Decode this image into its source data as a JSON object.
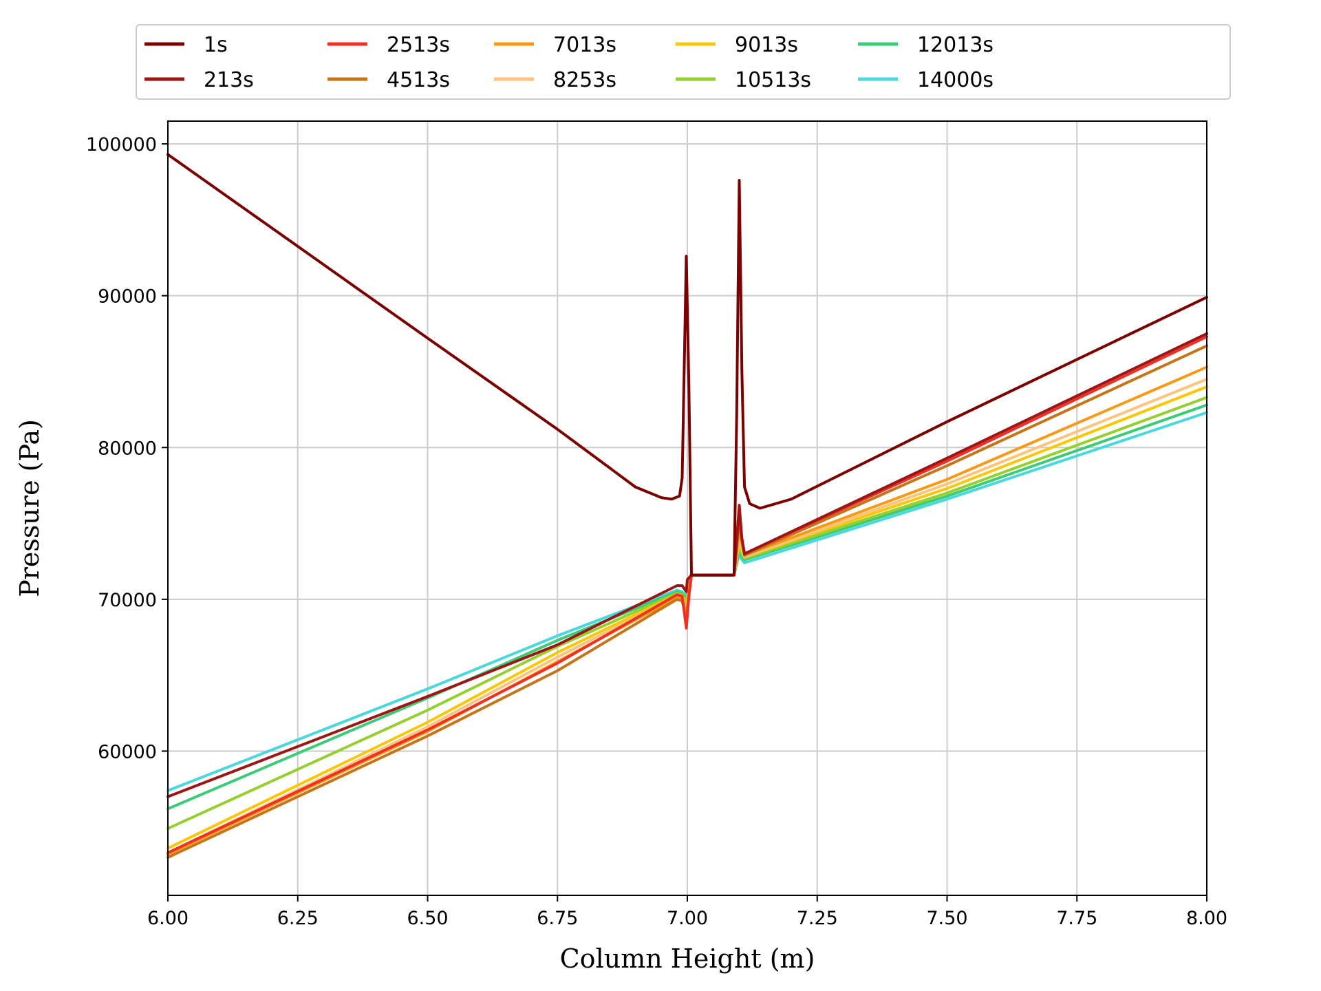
{
  "chart_data": {
    "type": "line",
    "title": "",
    "xlabel": "Column Height (m)",
    "ylabel": "Pressure (Pa)",
    "xlim": [
      6.0,
      8.0
    ],
    "ylim": [
      50500,
      101500
    ],
    "xticks": [
      6.0,
      6.25,
      6.5,
      6.75,
      7.0,
      7.25,
      7.5,
      7.75,
      8.0
    ],
    "xtick_labels": [
      "6.00",
      "6.25",
      "6.50",
      "6.75",
      "7.00",
      "7.25",
      "7.50",
      "7.75",
      "8.00"
    ],
    "yticks": [
      60000,
      70000,
      80000,
      90000,
      100000
    ],
    "ytick_labels": [
      "60000",
      "70000",
      "80000",
      "90000",
      "100000"
    ],
    "grid": true,
    "legend_position": "top-center, above plot, 6 columns",
    "series": [
      {
        "name": "1s",
        "color": "#7b0000",
        "points": [
          [
            6.0,
            99300
          ],
          [
            6.5,
            87200
          ],
          [
            6.75,
            81200
          ],
          [
            6.9,
            77400
          ],
          [
            6.95,
            76700
          ],
          [
            6.97,
            76600
          ],
          [
            6.985,
            76800
          ],
          [
            6.99,
            78000
          ],
          [
            6.998,
            92600
          ],
          [
            7.003,
            84000
          ],
          [
            7.008,
            71600
          ],
          [
            7.09,
            71600
          ],
          [
            7.095,
            82000
          ],
          [
            7.1,
            97600
          ],
          [
            7.105,
            85000
          ],
          [
            7.11,
            77400
          ],
          [
            7.12,
            76300
          ],
          [
            7.14,
            76000
          ],
          [
            7.2,
            76600
          ],
          [
            7.5,
            81700
          ],
          [
            8.0,
            89900
          ]
        ]
      },
      {
        "name": "213s",
        "color": "#9e1515",
        "points": [
          [
            6.0,
            57000
          ],
          [
            6.5,
            63600
          ],
          [
            6.75,
            67000
          ],
          [
            6.98,
            70900
          ],
          [
            6.99,
            70900
          ],
          [
            6.998,
            70500
          ],
          [
            7.0,
            71300
          ],
          [
            7.008,
            71600
          ],
          [
            7.09,
            71600
          ],
          [
            7.1,
            76200
          ],
          [
            7.105,
            74000
          ],
          [
            7.11,
            73000
          ],
          [
            7.5,
            79300
          ],
          [
            8.0,
            87500
          ]
        ]
      },
      {
        "name": "2513s",
        "color": "#f03024",
        "points": [
          [
            6.0,
            53300
          ],
          [
            6.5,
            61400
          ],
          [
            6.75,
            65800
          ],
          [
            6.98,
            70300
          ],
          [
            6.99,
            70200
          ],
          [
            6.998,
            68100
          ],
          [
            7.003,
            70200
          ],
          [
            7.008,
            71600
          ],
          [
            7.09,
            71600
          ],
          [
            7.1,
            75600
          ],
          [
            7.105,
            74000
          ],
          [
            7.11,
            73000
          ],
          [
            7.5,
            79100
          ],
          [
            8.0,
            87300
          ]
        ]
      },
      {
        "name": "4513s",
        "color": "#c57518",
        "points": [
          [
            6.0,
            53000
          ],
          [
            6.5,
            61000
          ],
          [
            6.75,
            65300
          ],
          [
            6.98,
            70000
          ],
          [
            6.99,
            69900
          ],
          [
            6.998,
            68700
          ],
          [
            7.003,
            70300
          ],
          [
            7.008,
            71600
          ],
          [
            7.09,
            71600
          ],
          [
            7.1,
            75200
          ],
          [
            7.105,
            73900
          ],
          [
            7.11,
            72900
          ],
          [
            7.5,
            78800
          ],
          [
            8.0,
            86700
          ]
        ]
      },
      {
        "name": "7013s",
        "color": "#fa9a14",
        "points": [
          [
            6.0,
            53200
          ],
          [
            6.5,
            61300
          ],
          [
            6.75,
            65900
          ],
          [
            6.98,
            70100
          ],
          [
            6.99,
            70000
          ],
          [
            6.998,
            69000
          ],
          [
            7.003,
            70500
          ],
          [
            7.008,
            71600
          ],
          [
            7.09,
            71600
          ],
          [
            7.1,
            74600
          ],
          [
            7.105,
            73600
          ],
          [
            7.11,
            72900
          ],
          [
            7.5,
            77900
          ],
          [
            8.0,
            85300
          ]
        ]
      },
      {
        "name": "8253s",
        "color": "#fcc47e",
        "points": [
          [
            6.0,
            53300
          ],
          [
            6.5,
            61600
          ],
          [
            6.75,
            66200
          ],
          [
            6.98,
            70200
          ],
          [
            6.99,
            70100
          ],
          [
            6.998,
            69300
          ],
          [
            7.003,
            70600
          ],
          [
            7.008,
            71600
          ],
          [
            7.09,
            71600
          ],
          [
            7.1,
            74100
          ],
          [
            7.105,
            73300
          ],
          [
            7.11,
            72800
          ],
          [
            7.5,
            77600
          ],
          [
            8.0,
            84500
          ]
        ]
      },
      {
        "name": "9013s",
        "color": "#f8c806",
        "points": [
          [
            6.0,
            53600
          ],
          [
            6.5,
            61900
          ],
          [
            6.75,
            66500
          ],
          [
            6.98,
            70300
          ],
          [
            6.99,
            70200
          ],
          [
            6.998,
            69500
          ],
          [
            7.003,
            70700
          ],
          [
            7.008,
            71600
          ],
          [
            7.09,
            71600
          ],
          [
            7.1,
            73900
          ],
          [
            7.105,
            73200
          ],
          [
            7.11,
            72800
          ],
          [
            7.5,
            77300
          ],
          [
            8.0,
            84000
          ]
        ]
      },
      {
        "name": "10513s",
        "color": "#96d02e",
        "points": [
          [
            6.0,
            54900
          ],
          [
            6.5,
            62700
          ],
          [
            6.75,
            66900
          ],
          [
            6.98,
            70400
          ],
          [
            6.99,
            70300
          ],
          [
            6.998,
            69800
          ],
          [
            7.003,
            70800
          ],
          [
            7.008,
            71600
          ],
          [
            7.09,
            71600
          ],
          [
            7.1,
            73500
          ],
          [
            7.105,
            73000
          ],
          [
            7.11,
            72700
          ],
          [
            7.5,
            77000
          ],
          [
            8.0,
            83300
          ]
        ]
      },
      {
        "name": "12013s",
        "color": "#3ccc78",
        "points": [
          [
            6.0,
            56200
          ],
          [
            6.5,
            63500
          ],
          [
            6.75,
            67300
          ],
          [
            6.98,
            70500
          ],
          [
            6.99,
            70400
          ],
          [
            6.998,
            70000
          ],
          [
            7.003,
            70900
          ],
          [
            7.008,
            71600
          ],
          [
            7.09,
            71600
          ],
          [
            7.1,
            73200
          ],
          [
            7.105,
            72800
          ],
          [
            7.11,
            72600
          ],
          [
            7.5,
            76800
          ],
          [
            8.0,
            82800
          ]
        ]
      },
      {
        "name": "14000s",
        "color": "#4ad8dc",
        "points": [
          [
            6.0,
            57400
          ],
          [
            6.5,
            64100
          ],
          [
            6.75,
            67600
          ],
          [
            6.98,
            70600
          ],
          [
            6.99,
            70500
          ],
          [
            6.998,
            70200
          ],
          [
            7.003,
            71000
          ],
          [
            7.008,
            71600
          ],
          [
            7.09,
            71600
          ],
          [
            7.1,
            73000
          ],
          [
            7.105,
            72600
          ],
          [
            7.11,
            72400
          ],
          [
            7.5,
            76600
          ],
          [
            8.0,
            82300
          ]
        ]
      }
    ]
  }
}
